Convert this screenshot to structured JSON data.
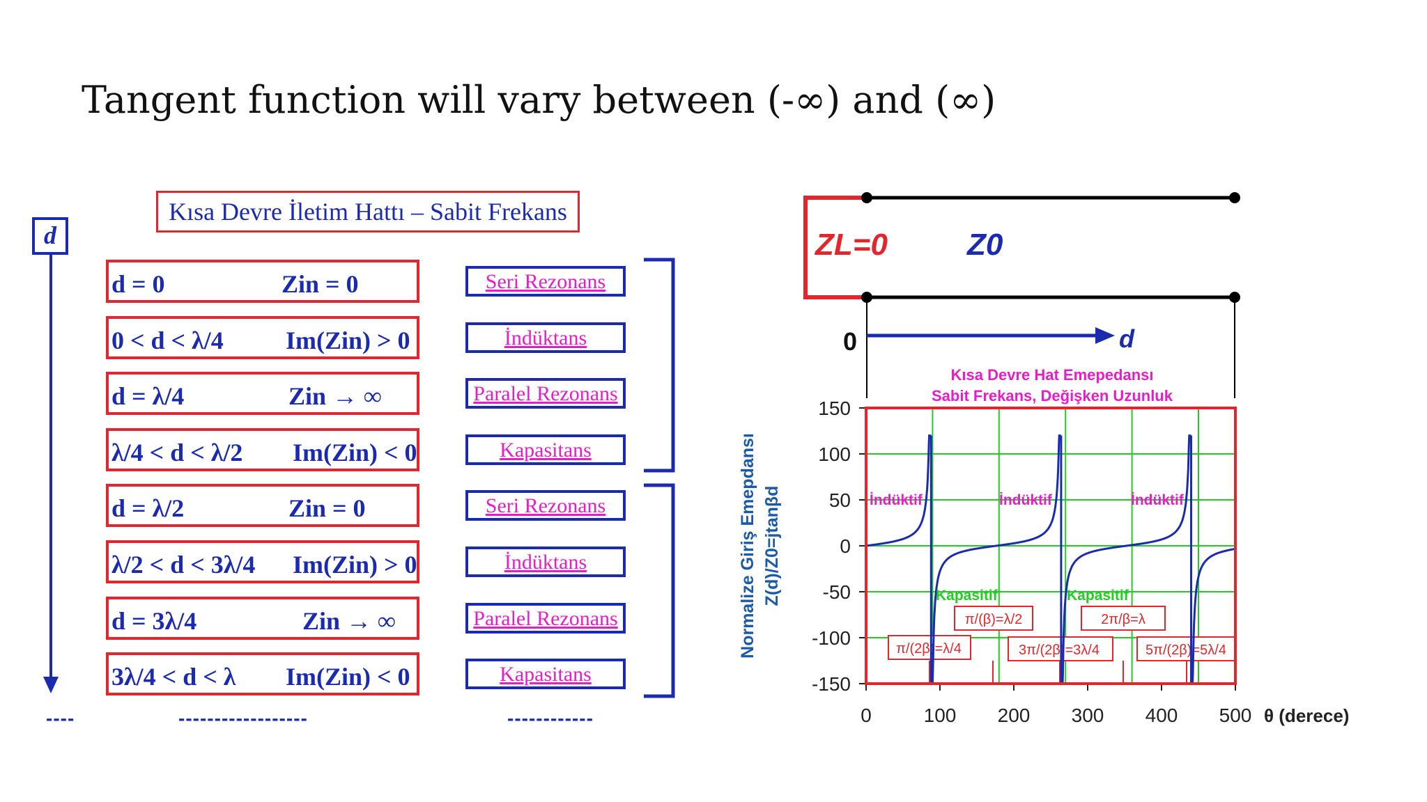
{
  "slide": {
    "title": "Tangent function will vary between (-∞) and (∞)"
  },
  "left_panel": {
    "title": "Kısa Devre İletim Hattı – Sabit Frekans",
    "axis_label": "d",
    "rows": [
      {
        "condition": "d = 0",
        "impedance": "Zin = 0",
        "resonance": "Seri Rezonans"
      },
      {
        "condition": "0 < d < λ/4",
        "impedance": "Im(Zin) > 0",
        "resonance": "İndüktans"
      },
      {
        "condition": "d = λ/4",
        "impedance": "Zin → ∞",
        "resonance": "Paralel Rezonans"
      },
      {
        "condition": "λ/4 < d < λ/2",
        "impedance": "Im(Zin) < 0",
        "resonance": "Kapasitans"
      },
      {
        "condition": "d = λ/2",
        "impedance": "Zin = 0",
        "resonance": "Seri Rezonans"
      },
      {
        "condition": "λ/2 < d < 3λ/4",
        "impedance": "Im(Zin) > 0",
        "resonance": "İndüktans"
      },
      {
        "condition": "d = 3λ/4",
        "impedance": "Zin → ∞",
        "resonance": "Paralel Rezonans"
      },
      {
        "condition": "3λ/4 < d < λ",
        "impedance": "Im(Zin) < 0",
        "resonance": "Kapasitans"
      }
    ],
    "dashes": [
      "----",
      "------------------",
      "------------"
    ]
  },
  "circuit": {
    "load_label": "ZL=0",
    "line_label": "Z0",
    "origin_label": "0",
    "direction_label": "d"
  },
  "colors": {
    "red": "#e3262b",
    "blue": "#1a2bb0",
    "magenta": "#e81cc8",
    "green": "#22cc22"
  },
  "chart_data": {
    "type": "line",
    "title": "Kısa Devre Hat Emepedansı",
    "subtitle": "Sabit Frekans, Değişken Uzunluk",
    "ylabel_line1": "Normalize Giriş Emepdansı",
    "ylabel_line2": "Z(d)/Z0=jtanβd",
    "xlabel": "θ (derece)",
    "xlim": [
      0,
      500
    ],
    "ylim": [
      -150,
      150
    ],
    "x_ticks": [
      0,
      100,
      200,
      300,
      400,
      500
    ],
    "y_ticks": [
      150,
      100,
      50,
      0,
      -50,
      -100,
      -150
    ],
    "series": [
      {
        "name": "Z(d)/Z0 = j tan βd",
        "function": "tan(θ)",
        "clip": [
          -150,
          120
        ]
      }
    ],
    "annotations_inductive": [
      "İndüktif",
      "İndüktif",
      "İndüktif"
    ],
    "annotations_capacitive": [
      "Kapasitif",
      "Kapasitif"
    ],
    "marker_boxes": [
      "π/(2β)=λ/4",
      "π/(β)=λ/2",
      "3π/(2β)=3λ/4",
      "2π/β=λ",
      "5π/(2β)=5λ/4"
    ]
  }
}
